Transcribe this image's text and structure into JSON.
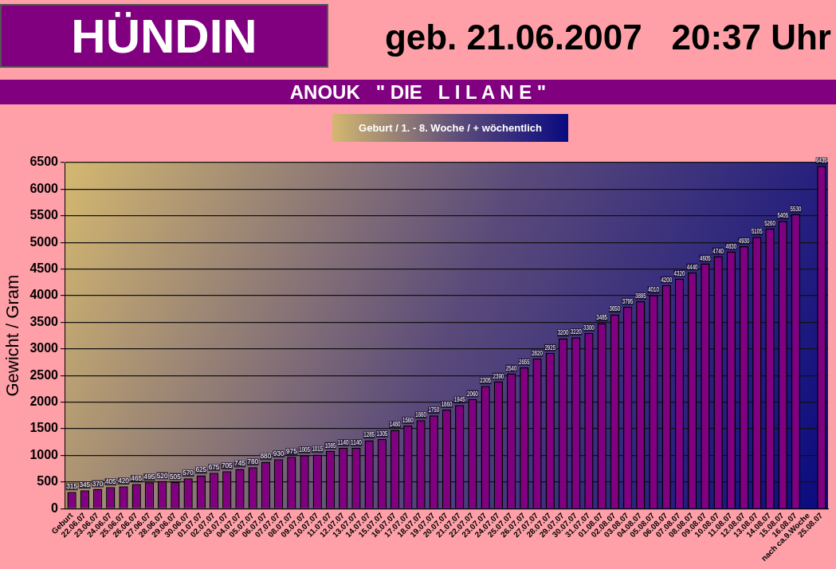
{
  "chart_data": {
    "type": "bar",
    "title": "HÜNDIN",
    "subtitle": "ANOUK   \" DIE   L I L A N E \"",
    "annotations": [
      "geb. 21.06.2007   20:37 Uhr",
      "Geburt / 1. - 8. Woche / + wöchentlich"
    ],
    "ylabel": "Gewicht / Gram",
    "categories": [
      "Geburt",
      "22.06.07",
      "23.06.07",
      "24.06.07",
      "25.06.07",
      "26.06.07",
      "27.06.07",
      "28.06.07",
      "29.06.07",
      "30.06.07",
      "01.07.07",
      "02.07.07",
      "03.07.07",
      "04.07.07",
      "05.07.07",
      "06.07.07",
      "07.07.07",
      "08.07.07",
      "09.07.07",
      "10.07.07",
      "11.07.07",
      "12.07.07",
      "13.07.07",
      "14.07.07",
      "15.07.07",
      "16.07.07",
      "17.07.07",
      "18.07.07",
      "19.07.07",
      "20.07.07",
      "21.07.07",
      "22.07.07",
      "23.07.07",
      "24.07.07",
      "25.07.07",
      "26.07.07",
      "27.07.07",
      "28.07.07",
      "29.07.07",
      "30.07.07",
      "31.07.07",
      "01.08.07",
      "02.08.07",
      "03.08.07",
      "04.08.07",
      "05.08.07",
      "06.08.07",
      "07.08.07",
      "08.08.07",
      "09.08.07",
      "10.08.07",
      "11.08.07",
      "12.08.07",
      "13.08.07",
      "14.08.07",
      "15.08.07",
      "16.08.07",
      "nach ca.9.Woche",
      "25.08.07"
    ],
    "values": [
      315,
      345,
      370,
      405,
      420,
      465,
      495,
      520,
      505,
      570,
      625,
      675,
      705,
      745,
      780,
      880,
      930,
      975,
      1005,
      1015,
      1085,
      1140,
      1140,
      1285,
      1305,
      1480,
      1560,
      1660,
      1750,
      1860,
      1945,
      2060,
      2305,
      2390,
      2540,
      2655,
      2820,
      2925,
      3200,
      3220,
      3300,
      3485,
      3650,
      3795,
      3895,
      4010,
      4200,
      4320,
      4440,
      4605,
      4740,
      4830,
      4930,
      5105,
      5260,
      5405,
      5530,
      null,
      6435
    ],
    "color": "#800080",
    "ylim": [
      0,
      6500
    ],
    "yticks": [
      0,
      500,
      1000,
      1500,
      2000,
      2500,
      3000,
      3500,
      4000,
      4500,
      5000,
      5500,
      6000,
      6500
    ],
    "grid": "y",
    "data_labels": true,
    "legend": false
  }
}
